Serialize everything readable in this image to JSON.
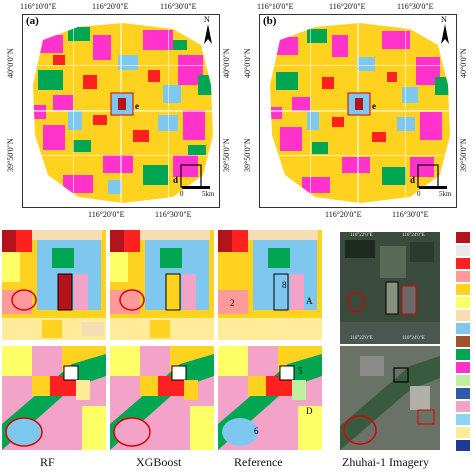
{
  "top_panels": [
    {
      "label": "(a)",
      "lon_top": [
        "116°10'0\"E",
        "116°20'0\"E",
        "116°30'0\"E"
      ],
      "lon_bottom": [
        "116°20'0\"E",
        "116°30'0\"E"
      ],
      "lat_left": [
        "40°0'0\"N",
        "39°50'0\"N"
      ],
      "lat_right": [
        "40°0'0\"N",
        "39°50'0\"N"
      ],
      "north": "N",
      "scale": {
        "start": "0",
        "end": "5km"
      },
      "markers": [
        "e",
        "d"
      ]
    },
    {
      "label": "(b)",
      "lon_top": [
        "116°10'0\"E",
        "116°20'0\"E",
        "116°30'0\"E"
      ],
      "lon_bottom": [
        "116°20'0\"E",
        "116°30'0\"E"
      ],
      "lat_left": [
        "40°0'0\"N",
        "39°50'0\"N"
      ],
      "lat_right": [
        "40°0'0\"N",
        "39°50'0\"N"
      ],
      "north": "N",
      "scale": {
        "start": "0",
        "end": "5km"
      },
      "markers": [
        "e",
        "d"
      ]
    }
  ],
  "detail_row1_labels": [
    "8",
    "2",
    "A"
  ],
  "detail_row2_labels": [
    "5",
    "6",
    "D"
  ],
  "imagery_coords": {
    "top": [
      "116°22'0\"E",
      "116°24'0\"E"
    ],
    "bottom": [
      "116°22'0\"E",
      "116°24'0\"E"
    ]
  },
  "captions": [
    "RF",
    "XGBoost",
    "Reference",
    "Zhuhai-1 Imagery"
  ],
  "legend_colors": [
    "#b3141b",
    "#e8e8e8",
    "#ff2020",
    "#ff9a9a",
    "#ffd21f",
    "#ffff66",
    "#f5deb3",
    "#7ec8f0",
    "#a0522d",
    "#00a651",
    "#ff33cc",
    "#bdf0a0",
    "#2e5aa8",
    "#f4a3c8",
    "#8fd3f4",
    "#ffeb99",
    "#1f3a93"
  ]
}
